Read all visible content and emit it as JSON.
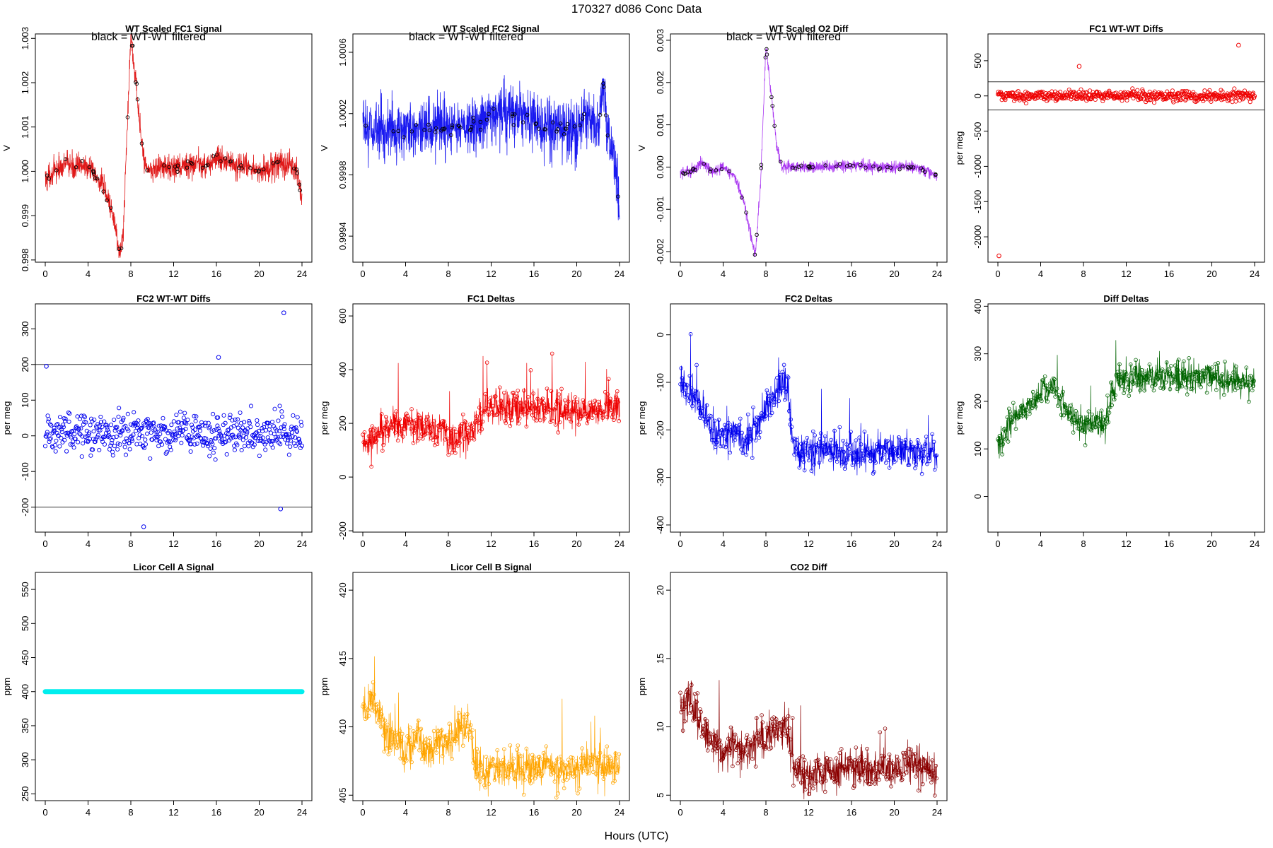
{
  "figure": {
    "title": "170327    d086    Conc Data",
    "xlabel": "Hours (UTC)"
  },
  "chart_data": [
    {
      "id": "p1",
      "type": "line",
      "title": "WT Scaled FC1 Signal",
      "annotation": "black = WT-WT filtered",
      "ylabel": "V",
      "color": "#dd0000",
      "markers": "black",
      "xlim": [
        0,
        24
      ],
      "xticks": [
        0,
        4,
        8,
        12,
        16,
        20,
        24
      ],
      "ylim": [
        0.99795,
        1.0031
      ],
      "yticks": [
        0.998,
        0.999,
        1.0,
        1.001,
        1.002,
        1.003
      ],
      "ytick_labels": [
        "0.998",
        "0.999",
        "1.000",
        "1.001",
        "1.002",
        "1.003"
      ],
      "x": [
        0,
        0.5,
        1,
        1.5,
        2,
        2.5,
        3,
        3.5,
        4,
        4.5,
        5,
        5.5,
        6,
        6.5,
        7,
        7.3,
        7.6,
        8,
        8.2,
        8.6,
        9,
        9.5,
        10,
        11,
        12,
        13,
        14,
        15,
        16,
        17,
        18,
        19,
        20,
        21,
        22,
        22.5,
        23,
        23.5,
        24
      ],
      "y": [
        0.9998,
        0.99995,
        1.0,
        1.0001,
        1.0002,
        1.0001,
        1.0001,
        1.00015,
        1.0001,
        0.99995,
        0.9998,
        0.9996,
        0.9993,
        0.9988,
        0.9981,
        0.9986,
        1.0006,
        1.0031,
        1.0027,
        1.0017,
        1.0006,
        1.00005,
        1.00005,
        1.0001,
        1.00005,
        1.0001,
        1.0002,
        1.0001,
        1.0003,
        1.0002,
        1.0001,
        1.0001,
        1.0,
        1.0001,
        1.0002,
        1.0001,
        1.0001,
        1.0,
        0.9994
      ],
      "noise": 0.0003
    },
    {
      "id": "p2",
      "type": "line",
      "title": "WT Scaled FC2 Signal",
      "annotation": "black = WT-WT filtered",
      "ylabel": "V",
      "color": "#0000ee",
      "markers": "black",
      "xlim": [
        0,
        24
      ],
      "xticks": [
        0,
        4,
        8,
        12,
        16,
        20,
        24
      ],
      "ylim": [
        0.99923,
        1.00072
      ],
      "yticks": [
        0.9994,
        0.9998,
        1.0002,
        1.0006
      ],
      "ytick_labels": [
        "0.9994",
        "0.9998",
        "1.0002",
        "1.0006"
      ],
      "x": [
        0,
        2,
        4,
        6,
        8,
        10,
        12,
        14,
        16,
        18,
        20,
        21,
        22,
        22.5,
        23,
        23.5,
        24
      ],
      "y": [
        1.0001,
        1.0001,
        1.0001,
        1.0001,
        1.0001,
        1.0001,
        1.0002,
        1.0002,
        1.00015,
        1.0001,
        1.0001,
        1.0002,
        1.0001,
        1.0004,
        1.0,
        0.9999,
        0.9996
      ],
      "noise": 0.0002
    },
    {
      "id": "p3",
      "type": "line",
      "title": "WT Scaled O2 Diff",
      "annotation": "black = WT-WT filtered",
      "ylabel": "V",
      "color": "#a020f0",
      "markers": "black",
      "xlim": [
        0,
        24
      ],
      "xticks": [
        0,
        4,
        8,
        12,
        16,
        20,
        24
      ],
      "ylim": [
        -0.00225,
        0.00315
      ],
      "yticks": [
        -0.002,
        -0.001,
        0.0,
        0.001,
        0.002,
        0.003
      ],
      "ytick_labels": [
        "-0.002",
        "-0.001",
        "0.000",
        "0.001",
        "0.002",
        "0.003"
      ],
      "x": [
        0,
        1,
        2,
        3,
        4,
        5,
        5.5,
        6,
        6.5,
        7,
        7.5,
        8,
        8.5,
        9,
        9.5,
        10,
        12,
        14,
        16,
        18,
        20,
        22,
        23,
        24
      ],
      "y": [
        -0.00015,
        -0.0001,
        0.0001,
        -0.0001,
        0.0,
        -0.0002,
        -0.0005,
        -0.0009,
        -0.0015,
        -0.0021,
        -0.0004,
        0.0029,
        0.0017,
        0.0005,
        0.0,
        0.0,
        0.0,
        0.0,
        5e-05,
        0.0,
        0.0,
        0.0,
        -0.0001,
        -0.0002
      ],
      "noise": 0.00015
    },
    {
      "id": "p4",
      "type": "scatter",
      "title": "FC1 WT-WT Diffs",
      "ylabel": "per meg",
      "color": "#ee0000",
      "xlim": [
        0,
        24
      ],
      "xticks": [
        0,
        4,
        8,
        12,
        16,
        20,
        24
      ],
      "ylim": [
        -2360,
        880
      ],
      "yticks": [
        -2000,
        -1500,
        -1000,
        -500,
        0,
        500
      ],
      "ytick_labels": [
        "-2000",
        "-1500",
        "-1000",
        "-500",
        "0",
        "500"
      ],
      "hlines": [
        200,
        -200
      ],
      "outliers": [
        {
          "x": 0.1,
          "y": -2270
        },
        {
          "x": 22.5,
          "y": 720
        },
        {
          "x": 7.6,
          "y": 420
        }
      ],
      "x": [
        0,
        24
      ],
      "y": [
        0,
        0
      ],
      "noise": 80
    },
    {
      "id": "p5",
      "type": "scatter",
      "title": "FC2 WT-WT Diffs",
      "ylabel": "per meg",
      "color": "#0000ee",
      "xlim": [
        0,
        24
      ],
      "xticks": [
        0,
        4,
        8,
        12,
        16,
        20,
        24
      ],
      "ylim": [
        -270,
        370
      ],
      "yticks": [
        -200,
        -100,
        0,
        100,
        200,
        300
      ],
      "ytick_labels": [
        "-200",
        "-100",
        "0",
        "100",
        "200",
        "300"
      ],
      "hlines": [
        200,
        -200
      ],
      "outliers": [
        {
          "x": 22.3,
          "y": 345
        },
        {
          "x": 16.2,
          "y": 220
        },
        {
          "x": 9.2,
          "y": -255
        },
        {
          "x": 0.1,
          "y": 195
        },
        {
          "x": 22,
          "y": -205
        }
      ],
      "x": [
        0,
        24
      ],
      "y": [
        10,
        10
      ],
      "noise": 60
    },
    {
      "id": "p6",
      "type": "line-markers",
      "title": "FC1 Deltas",
      "ylabel": "per meg",
      "color": "#ee0000",
      "xlim": [
        0,
        24
      ],
      "xticks": [
        0,
        4,
        8,
        12,
        16,
        20,
        24
      ],
      "ylim": [
        -205,
        645
      ],
      "yticks": [
        -200,
        0,
        200,
        400,
        600
      ],
      "ytick_labels": [
        "-200",
        "0",
        "200",
        "400",
        "600"
      ],
      "x": [
        0,
        1,
        2,
        3,
        4,
        5,
        6,
        7,
        7.5,
        8,
        9,
        10,
        11,
        12,
        14,
        16,
        18,
        20,
        22,
        24
      ],
      "y": [
        100,
        140,
        180,
        200,
        210,
        180,
        200,
        150,
        200,
        120,
        150,
        150,
        240,
        260,
        260,
        260,
        250,
        250,
        240,
        250
      ],
      "noise": 70
    },
    {
      "id": "p7",
      "type": "line-markers",
      "title": "FC2 Deltas",
      "ylabel": "per meg",
      "color": "#0000ee",
      "xlim": [
        0,
        24
      ],
      "xticks": [
        0,
        4,
        8,
        12,
        16,
        20,
        24
      ],
      "ylim": [
        -415,
        65
      ],
      "yticks": [
        -400,
        -300,
        -200,
        -100,
        0
      ],
      "ytick_labels": [
        "-400",
        "-300",
        "-200",
        "-100",
        "0"
      ],
      "x": [
        0,
        1,
        2,
        3,
        4,
        5,
        6,
        7,
        8,
        9,
        10,
        10.5,
        12,
        14,
        16,
        18,
        20,
        22,
        24
      ],
      "y": [
        -100,
        -120,
        -150,
        -200,
        -220,
        -200,
        -230,
        -200,
        -150,
        -120,
        -100,
        -240,
        -250,
        -240,
        -250,
        -250,
        -240,
        -250,
        -250
      ],
      "noise": 40
    },
    {
      "id": "p8",
      "type": "line-markers",
      "title": "Diff Deltas",
      "ylabel": "per meg",
      "color": "#006400",
      "xlim": [
        0,
        24
      ],
      "xticks": [
        0,
        4,
        8,
        12,
        16,
        20,
        24
      ],
      "ylim": [
        -75,
        405
      ],
      "yticks": [
        0,
        100,
        200,
        300,
        400
      ],
      "ytick_labels": [
        "0",
        "100",
        "200",
        "300",
        "400"
      ],
      "x": [
        0,
        1,
        2,
        3,
        4,
        5,
        6,
        7,
        8,
        9,
        10,
        11,
        12,
        14,
        16,
        18,
        20,
        22,
        24
      ],
      "y": [
        100,
        150,
        180,
        200,
        220,
        230,
        200,
        160,
        150,
        160,
        150,
        240,
        250,
        250,
        250,
        250,
        250,
        240,
        240
      ],
      "noise": 35
    },
    {
      "id": "p9",
      "type": "line-markers",
      "title": "Licor Cell A Signal",
      "ylabel": "ppm",
      "color": "#00eeee",
      "xlim": [
        0,
        24
      ],
      "xticks": [
        0,
        4,
        8,
        12,
        16,
        20,
        24
      ],
      "ylim": [
        240,
        575
      ],
      "yticks": [
        250,
        300,
        350,
        400,
        450,
        500,
        550
      ],
      "ytick_labels": [
        "250",
        "300",
        "350",
        "400",
        "450",
        "500",
        "550"
      ],
      "x": [
        0,
        24
      ],
      "y": [
        400,
        400
      ],
      "noise": 0
    },
    {
      "id": "p10",
      "type": "line-markers",
      "title": "Licor Cell B Signal",
      "ylabel": "ppm",
      "color": "#ffa500",
      "xlim": [
        0,
        24
      ],
      "xticks": [
        0,
        4,
        8,
        12,
        16,
        20,
        24
      ],
      "ylim": [
        404.6,
        421.3
      ],
      "yticks": [
        405,
        410,
        415,
        420
      ],
      "ytick_labels": [
        "405",
        "410",
        "415",
        "420"
      ],
      "x": [
        0,
        1,
        2,
        3,
        4,
        5,
        6,
        7,
        8,
        9,
        10,
        10.5,
        12,
        14,
        16,
        18,
        20,
        21,
        22,
        23,
        24
      ],
      "y": [
        411,
        412,
        410,
        409,
        408,
        409,
        408,
        409,
        409,
        410,
        410,
        407,
        406.8,
        407,
        407.2,
        407,
        406.8,
        407.5,
        407.2,
        407,
        406.9
      ],
      "noise": 1.5
    },
    {
      "id": "p11",
      "type": "line-markers",
      "title": "CO2 Diff",
      "ylabel": "ppm",
      "color": "#8b0000",
      "xlim": [
        0,
        24
      ],
      "xticks": [
        0,
        4,
        8,
        12,
        16,
        20,
        24
      ],
      "ylim": [
        4.6,
        21.3
      ],
      "yticks": [
        5,
        10,
        15,
        20
      ],
      "ytick_labels": [
        "5",
        "10",
        "15",
        "20"
      ],
      "x": [
        0,
        1,
        2,
        3,
        4,
        5,
        6,
        7,
        8,
        9,
        10,
        10.5,
        12,
        14,
        16,
        18,
        20,
        21,
        22,
        23,
        24
      ],
      "y": [
        11,
        12,
        10,
        9,
        8,
        9,
        8,
        9,
        9,
        10,
        10,
        7,
        6.5,
        6.7,
        7,
        6.8,
        6.8,
        7.5,
        7.2,
        6.9,
        6.8
      ],
      "noise": 1.5
    }
  ]
}
